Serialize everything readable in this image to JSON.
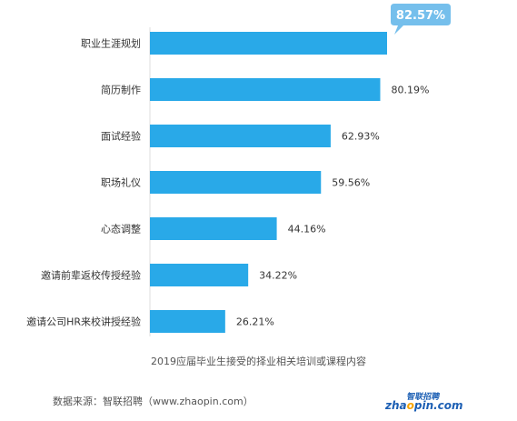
{
  "chart_data": {
    "type": "bar",
    "orientation": "horizontal",
    "categories": [
      "职业生涯规划",
      "简历制作",
      "面试经验",
      "职场礼仪",
      "心态调整",
      "邀请前辈返校传授经验",
      "邀请公司HR来校讲授经验"
    ],
    "value_labels": [
      "82.57%",
      "80.19%",
      "62.93%",
      "59.56%",
      "44.16%",
      "34.22%",
      "26.21%"
    ],
    "values": [
      82.57,
      80.19,
      62.93,
      59.56,
      44.16,
      34.22,
      26.21
    ],
    "highlight_index": 0,
    "title": "2019应届毕业生接受的择业相关培训或课程内容",
    "xlim": [
      0,
      82.57
    ],
    "grid": false,
    "bar_color": "#29a9e8",
    "callout_color": "#75bfec"
  },
  "source_text": "数据来源：智联招聘（www.zhaopin.com）",
  "logo": {
    "cn": "智联招聘",
    "en_prefix": "zha",
    "en_dot": "o",
    "en_suffix": "pin.com"
  }
}
